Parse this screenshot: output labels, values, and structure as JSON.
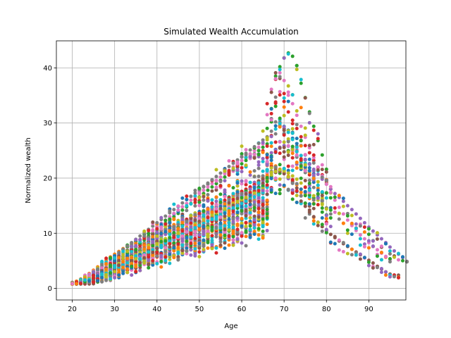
{
  "chart_data": {
    "type": "scatter",
    "title": "Simulated Wealth Accumulation",
    "xlabel": "Age",
    "ylabel": "Normalized wealth",
    "xlim": [
      16.25,
      98.75
    ],
    "ylim": [
      -2.1,
      44.9
    ],
    "xticks": [
      20,
      30,
      40,
      50,
      60,
      70,
      80,
      90
    ],
    "yticks": [
      0,
      10,
      20,
      30,
      40
    ],
    "grid": true,
    "legend": "none",
    "colors": [
      "#1f77b4",
      "#ff7f0e",
      "#2ca02c",
      "#d62728",
      "#9467bd",
      "#8c564b",
      "#e377c2",
      "#7f7f7f",
      "#bcbd22",
      "#17becf"
    ],
    "series": [
      {
        "color": "#1f77b4",
        "retire": 66,
        "y": [
          1.0,
          1.2,
          1.5,
          1.9,
          2.3,
          2.8,
          3.3,
          3.8,
          4.3,
          4.8,
          5.3,
          5.8,
          6.2,
          6.6,
          7.0,
          7.4,
          7.8,
          8.2,
          8.6,
          8.9,
          9.3,
          9.7,
          10.0,
          10.4,
          10.7,
          11.1,
          11.4,
          11.8,
          12.1,
          12.4,
          12.8,
          13.1,
          13.4,
          13.8,
          14.1,
          14.4,
          14.8,
          15.2,
          15.6,
          16.0,
          16.4,
          16.8,
          17.3,
          17.8,
          18.4,
          19.0,
          21.5,
          23.8,
          25.2,
          26.6,
          28.0,
          28.7,
          28.3,
          27.2,
          25.9,
          24.2,
          22.6,
          20.8
        ]
      },
      {
        "color": "#ff7f0e",
        "retire": 65,
        "y": [
          1.0,
          1.3,
          1.7,
          2.2,
          2.7,
          3.3,
          3.9,
          4.5,
          5.1,
          5.7,
          6.2,
          6.7,
          7.2,
          7.6,
          8.0,
          8.4,
          8.8,
          9.2,
          9.5,
          9.9,
          10.2,
          10.5,
          10.8,
          11.2,
          11.5,
          11.8,
          12.1,
          12.4,
          12.8,
          13.1,
          13.4,
          13.7,
          14.1,
          14.4,
          14.8,
          15.1,
          15.5,
          15.9,
          16.3,
          16.8,
          17.3,
          17.8,
          18.3,
          18.9,
          19.5,
          20.2,
          22.3,
          22.6,
          22.2,
          21.6,
          21.0,
          20.3,
          19.6,
          18.8,
          18.0,
          17.2,
          16.3,
          15.4
        ]
      },
      {
        "color": "#2ca02c",
        "retire": 67,
        "y": [
          1.0,
          1.2,
          1.4,
          1.7,
          2.0,
          2.4,
          2.8,
          3.2,
          3.7,
          4.2,
          4.7,
          5.2,
          5.8,
          6.4,
          7.0,
          7.6,
          8.2,
          8.8,
          9.4,
          10.0,
          10.6,
          11.2,
          11.8,
          12.4,
          13.0,
          13.6,
          14.2,
          14.8,
          15.4,
          16.0,
          16.6,
          17.2,
          17.8,
          18.4,
          19.0,
          19.6,
          20.2,
          20.8,
          21.4,
          22.0,
          22.6,
          23.2,
          23.8,
          24.4,
          25.0,
          25.6,
          26.2,
          30.2,
          38.5,
          40.2,
          41.8,
          42.7,
          42.1,
          40.4,
          37.2,
          34.6,
          32.0,
          29.4,
          26.8,
          24.2,
          21.6
        ]
      },
      {
        "color": "#d62728",
        "retire": 66,
        "y": [
          1.0,
          1.1,
          1.3,
          1.6,
          1.9,
          2.2,
          2.6,
          3.0,
          3.4,
          3.9,
          4.4,
          4.9,
          5.4,
          5.9,
          6.4,
          6.9,
          7.4,
          7.9,
          8.4,
          8.9,
          9.4,
          9.9,
          10.4,
          10.8,
          11.2,
          11.6,
          12.0,
          12.4,
          12.8,
          13.2,
          13.6,
          14.0,
          14.4,
          14.8,
          15.2,
          15.6,
          16.0,
          16.4,
          16.8,
          17.2,
          17.6,
          18.0,
          18.4,
          18.8,
          19.2,
          19.6,
          23.8,
          31.7,
          33.8,
          35.1,
          33.9,
          32.0,
          30.5,
          29.0,
          27.5,
          25.9,
          24.6,
          23.2,
          21.9,
          20.6,
          19.3,
          18.0
        ]
      },
      {
        "color": "#9467bd",
        "retire": 66,
        "y": [
          1.0,
          1.1,
          1.2,
          1.4,
          1.7,
          2.0,
          2.4,
          2.8,
          3.2,
          3.6,
          4.0,
          4.5,
          5.0,
          5.5,
          6.0,
          6.5,
          7.0,
          7.5,
          8.0,
          8.5,
          9.0,
          9.4,
          9.8,
          10.2,
          10.6,
          11.0,
          11.4,
          11.8,
          12.2,
          12.6,
          13.0,
          13.4,
          13.8,
          14.2,
          14.6,
          15.0,
          15.4,
          15.8,
          16.2,
          16.6,
          17.0,
          17.5,
          18.0,
          18.5,
          19.0,
          19.5,
          22.8,
          24.6,
          25.1,
          25.6,
          25.9,
          25.8,
          25.4,
          24.8,
          24.1,
          23.4,
          22.5,
          21.6,
          20.7,
          19.8,
          18.9,
          18.0,
          17.2,
          16.5,
          15.8,
          15.0,
          14.3,
          13.5,
          12.7,
          11.9,
          11.1,
          10.4,
          9.7,
          9.0,
          8.3,
          7.5,
          6.8,
          6.2,
          5.6,
          4.9
        ]
      },
      {
        "color": "#8c564b",
        "retire": 66,
        "y": [
          1.0,
          1.1,
          1.2,
          1.4,
          1.6,
          1.9,
          2.2,
          2.5,
          2.8,
          3.2,
          3.6,
          4.0,
          4.4,
          4.8,
          5.2,
          5.6,
          6.0,
          6.4,
          6.8,
          7.2,
          7.6,
          8.0,
          8.4,
          8.8,
          9.2,
          9.6,
          10.0,
          10.4,
          10.8,
          11.2,
          11.6,
          12.0,
          12.4,
          12.8,
          13.2,
          13.6,
          14.0,
          14.4,
          14.8,
          15.2,
          15.6,
          16.0,
          16.4,
          16.8,
          17.2,
          17.6,
          19.8,
          21.0,
          21.4,
          21.2,
          20.8,
          20.1,
          19.3,
          18.2,
          16.8,
          15.4,
          14.2,
          13.0,
          12.0,
          11.2,
          10.5,
          9.8,
          9.2,
          8.6,
          8.1,
          7.6,
          7.1,
          6.6,
          6.1,
          5.6,
          5.1,
          4.6,
          4.0,
          3.5,
          3.0,
          2.6,
          2.4,
          2.4
        ]
      },
      {
        "color": "#e377c2",
        "retire": 66,
        "y": [
          1.0,
          1.2,
          1.5,
          1.8,
          2.2,
          2.7,
          3.2,
          3.7,
          4.2,
          4.7,
          5.2,
          5.8,
          6.4,
          7.0,
          7.6,
          8.2,
          8.8,
          9.4,
          10.0,
          10.6,
          11.2,
          11.8,
          12.4,
          13.0,
          13.6,
          14.2,
          14.8,
          15.4,
          16.0,
          16.6,
          17.2,
          17.8,
          18.4,
          19.0,
          19.6,
          20.2,
          20.8,
          21.4,
          22.0,
          22.6,
          23.2,
          23.8,
          24.4,
          25.0,
          25.6,
          26.2,
          31.5,
          36.1,
          38.0,
          39.1,
          37.7,
          35.6,
          33.5,
          31.4,
          29.4,
          27.4,
          25.5,
          23.7,
          22.0,
          20.4,
          18.9,
          17.4,
          16.0,
          14.7,
          13.5,
          12.4,
          11.4,
          10.5,
          9.7,
          9.0,
          8.3,
          7.6,
          7.0,
          6.4,
          5.8,
          5.2
        ]
      },
      {
        "color": "#7f7f7f",
        "retire": 67,
        "y": [
          1.0,
          1.2,
          1.5,
          1.9,
          2.4,
          2.9,
          3.5,
          4.1,
          4.7,
          5.3,
          5.9,
          6.5,
          7.1,
          7.7,
          8.3,
          8.9,
          9.5,
          10.1,
          10.7,
          11.3,
          11.9,
          12.5,
          13.1,
          13.7,
          14.3,
          14.9,
          15.5,
          16.1,
          16.7,
          17.3,
          17.9,
          18.5,
          19.1,
          19.7,
          20.3,
          20.9,
          21.5,
          22.1,
          22.7,
          23.3,
          23.9,
          24.5,
          25.1,
          25.7,
          26.3,
          26.9,
          27.5,
          28.5,
          30.2,
          29.4,
          28.1,
          26.6,
          25.2,
          23.8,
          22.4,
          21.0,
          19.6,
          18.3,
          17.0,
          15.8,
          14.6,
          13.5
        ]
      },
      {
        "color": "#bcbd22",
        "retire": 66,
        "y": [
          1.0,
          1.1,
          1.3,
          1.5,
          1.8,
          2.1,
          2.5,
          2.9,
          3.3,
          3.7,
          4.1,
          4.5,
          4.9,
          5.3,
          5.7,
          6.1,
          6.5,
          6.9,
          7.3,
          7.7,
          8.1,
          8.5,
          8.9,
          9.3,
          9.7,
          10.1,
          10.5,
          10.9,
          11.3,
          11.7,
          12.1,
          12.5,
          12.9,
          13.3,
          13.7,
          14.1,
          14.5,
          14.9,
          15.3,
          15.7,
          16.1,
          16.5,
          16.9,
          17.3,
          17.7,
          18.1,
          19.5,
          20.6,
          21.2,
          21.5,
          21.3,
          20.9,
          20.4,
          19.8,
          19.1,
          18.4,
          17.6,
          16.8,
          16.0,
          15.2,
          14.4
        ]
      },
      {
        "color": "#17becf",
        "retire": 66,
        "y": [
          1.0,
          1.1,
          1.2,
          1.4,
          1.6,
          1.8,
          2.1,
          2.4,
          2.7,
          3.0,
          3.4,
          3.8,
          4.2,
          4.6,
          5.0,
          5.4,
          5.8,
          6.2,
          6.6,
          7.0,
          7.4,
          7.8,
          8.2,
          8.6,
          9.0,
          9.4,
          9.8,
          10.2,
          10.6,
          11.0,
          11.4,
          11.8,
          12.2,
          12.6,
          13.0,
          13.4,
          13.8,
          14.2,
          14.6,
          15.0,
          15.4,
          15.8,
          16.2,
          16.6,
          17.0,
          17.4,
          21.5,
          26.4,
          28.9,
          29.9,
          29.4,
          28.3,
          27.0,
          25.6,
          24.1,
          22.7,
          21.3,
          20.0,
          18.7,
          17.5,
          16.4
        ]
      }
    ]
  }
}
